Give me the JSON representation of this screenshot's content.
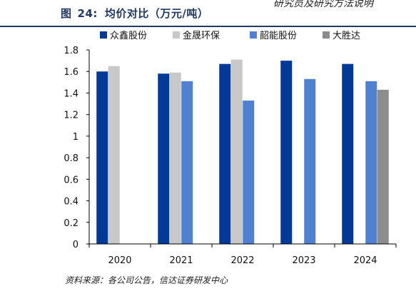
{
  "header_fragment": "研究员及研究方法说明",
  "figure": {
    "label": "图",
    "number": "24:",
    "title": "均价对比（万元/吨）"
  },
  "source": "资料来源：各公司公告，信达证券研发中心",
  "colors": {
    "众鑫股份": "#003a96",
    "金晟环保": "#c8c8c8",
    "韶能股份": "#4f81d0",
    "大胜达": "#8c8c8c"
  },
  "chart_data": {
    "type": "bar",
    "categories": [
      "2020",
      "2021",
      "2022",
      "2023",
      "2024"
    ],
    "series": [
      {
        "name": "众鑫股份",
        "values": [
          1.6,
          1.58,
          1.67,
          1.7,
          1.67
        ]
      },
      {
        "name": "金晟环保",
        "values": [
          1.65,
          1.59,
          1.71,
          null,
          null
        ]
      },
      {
        "name": "韶能股份",
        "values": [
          null,
          1.51,
          1.33,
          1.53,
          1.51
        ]
      },
      {
        "name": "大胜达",
        "values": [
          null,
          null,
          null,
          null,
          1.43
        ]
      }
    ],
    "ylim": [
      0,
      1.8
    ],
    "yticks": [
      "0",
      "0.2",
      "0.4",
      "0.6",
      "0.8",
      "1",
      "1.2",
      "1.4",
      "1.6",
      "1.8"
    ],
    "grid": false,
    "legend_position": "top"
  }
}
